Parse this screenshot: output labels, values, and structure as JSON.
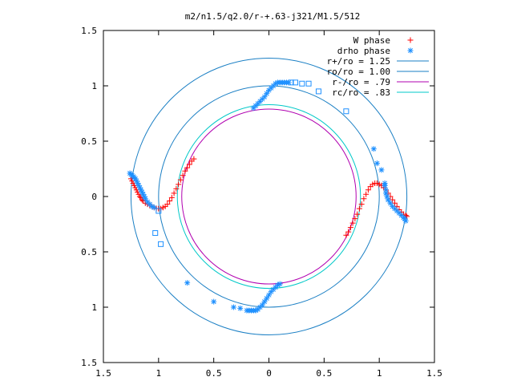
{
  "chart_data": {
    "type": "scatter",
    "title": "m2/n1.5/q2.0/r-+.63-j321/M1.5/512",
    "xlim": [
      -1.5,
      1.5
    ],
    "ylim": [
      -1.5,
      1.5
    ],
    "x_ticks": [
      -1.5,
      -1,
      -0.5,
      0,
      0.5,
      1,
      1.5
    ],
    "x_tick_labels": [
      "1.5",
      "1",
      "0.5",
      "0",
      "0.5",
      "1",
      "1.5"
    ],
    "y_ticks": [
      1.5,
      1,
      0.5,
      0,
      -0.5,
      -1,
      -1.5
    ],
    "y_tick_labels": [
      "1.5",
      "1",
      "0.5",
      "0",
      "0.5",
      "1",
      "1.5"
    ],
    "grid": false,
    "legend_position": "top-right",
    "legend": [
      {
        "label": "W phase",
        "marker": "plus",
        "color": "#ff0000"
      },
      {
        "label": "drho phase",
        "marker": "asterisk",
        "color": "#1e90ff"
      },
      {
        "label": "r+/ro = 1.25",
        "marker": "line",
        "color": "#1a7fc4"
      },
      {
        "label": "ro/ro = 1.00",
        "marker": "line",
        "color": "#1a7fc4"
      },
      {
        "label": "r-/ro =  .79",
        "marker": "line",
        "color": "#b000b0"
      },
      {
        "label": "rc/ro =  .83",
        "marker": "line",
        "color": "#00c8c8"
      }
    ],
    "circles": [
      {
        "r": 1.25,
        "color": "#1a7fc4"
      },
      {
        "r": 1.0,
        "color": "#1a7fc4"
      },
      {
        "r": 0.79,
        "color": "#b000b0"
      },
      {
        "r": 0.83,
        "color": "#00c8c8"
      }
    ],
    "series": [
      {
        "name": "W phase",
        "marker": "plus",
        "color": "#ff0000",
        "points": [
          [
            -1.25,
            0.16
          ],
          [
            -1.24,
            0.14
          ],
          [
            -1.23,
            0.12
          ],
          [
            -1.22,
            0.1
          ],
          [
            -1.21,
            0.08
          ],
          [
            -1.2,
            0.06
          ],
          [
            -1.19,
            0.04
          ],
          [
            -1.18,
            0.02
          ],
          [
            -1.17,
            0.0
          ],
          [
            -1.16,
            -0.01
          ],
          [
            -1.15,
            -0.03
          ],
          [
            -1.14,
            -0.04
          ],
          [
            -1.12,
            -0.06
          ],
          [
            -1.1,
            -0.07
          ],
          [
            -1.08,
            -0.08
          ],
          [
            -1.06,
            -0.09
          ],
          [
            -1.04,
            -0.1
          ],
          [
            -1.02,
            -0.11
          ],
          [
            -1.0,
            -0.11
          ],
          [
            -0.98,
            -0.11
          ],
          [
            -0.96,
            -0.1
          ],
          [
            -0.94,
            -0.09
          ],
          [
            -0.92,
            -0.07
          ],
          [
            -0.9,
            -0.04
          ],
          [
            -0.88,
            -0.01
          ],
          [
            -0.86,
            0.03
          ],
          [
            -0.84,
            0.07
          ],
          [
            -0.82,
            0.11
          ],
          [
            -0.8,
            0.15
          ],
          [
            -0.78,
            0.19
          ],
          [
            -0.76,
            0.23
          ],
          [
            -0.74,
            0.26
          ],
          [
            -0.72,
            0.29
          ],
          [
            -0.7,
            0.32
          ],
          [
            -0.68,
            0.34
          ],
          [
            0.7,
            -0.35
          ],
          [
            0.72,
            -0.32
          ],
          [
            0.74,
            -0.28
          ],
          [
            0.76,
            -0.24
          ],
          [
            0.78,
            -0.2
          ],
          [
            0.8,
            -0.16
          ],
          [
            0.82,
            -0.11
          ],
          [
            0.84,
            -0.07
          ],
          [
            0.86,
            -0.02
          ],
          [
            0.88,
            0.02
          ],
          [
            0.9,
            0.06
          ],
          [
            0.92,
            0.09
          ],
          [
            0.94,
            0.11
          ],
          [
            0.96,
            0.12
          ],
          [
            0.98,
            0.12
          ],
          [
            1.0,
            0.11
          ],
          [
            1.02,
            0.1
          ],
          [
            1.04,
            0.08
          ],
          [
            1.06,
            0.06
          ],
          [
            1.08,
            0.03
          ],
          [
            1.1,
            0.0
          ],
          [
            1.12,
            -0.03
          ],
          [
            1.14,
            -0.06
          ],
          [
            1.16,
            -0.09
          ],
          [
            1.18,
            -0.12
          ],
          [
            1.2,
            -0.14
          ],
          [
            1.22,
            -0.16
          ],
          [
            1.24,
            -0.17
          ],
          [
            1.25,
            -0.18
          ]
        ]
      },
      {
        "name": "drho phase",
        "marker": "asterisk",
        "color": "#1e90ff",
        "points": [
          [
            -1.26,
            0.21
          ],
          [
            -1.25,
            0.2
          ],
          [
            -1.24,
            0.19
          ],
          [
            -1.23,
            0.18
          ],
          [
            -1.22,
            0.17
          ],
          [
            -1.21,
            0.16
          ],
          [
            -1.2,
            0.14
          ],
          [
            -1.19,
            0.12
          ],
          [
            -1.18,
            0.1
          ],
          [
            -1.17,
            0.08
          ],
          [
            -1.16,
            0.06
          ],
          [
            -1.15,
            0.04
          ],
          [
            -1.14,
            0.02
          ],
          [
            -1.13,
            0.0
          ],
          [
            -1.12,
            -0.02
          ],
          [
            -1.1,
            -0.05
          ],
          [
            -1.08,
            -0.07
          ],
          [
            -1.06,
            -0.09
          ],
          [
            -1.04,
            -0.1
          ],
          [
            1.24,
            -0.22
          ],
          [
            1.23,
            -0.2
          ],
          [
            1.22,
            -0.19
          ],
          [
            1.2,
            -0.17
          ],
          [
            1.18,
            -0.15
          ],
          [
            1.16,
            -0.13
          ],
          [
            1.14,
            -0.11
          ],
          [
            1.12,
            -0.09
          ],
          [
            1.1,
            -0.06
          ],
          [
            1.08,
            -0.03
          ],
          [
            1.07,
            0.0
          ],
          [
            1.06,
            0.03
          ],
          [
            1.06,
            0.06
          ],
          [
            1.05,
            0.1
          ],
          [
            1.05,
            0.12
          ],
          [
            1.02,
            0.24
          ],
          [
            0.98,
            0.3
          ],
          [
            0.95,
            0.43
          ],
          [
            1.05,
            0.1
          ],
          [
            -0.14,
            0.8
          ],
          [
            -0.12,
            0.82
          ],
          [
            -0.1,
            0.84
          ],
          [
            -0.08,
            0.86
          ],
          [
            -0.06,
            0.88
          ],
          [
            -0.04,
            0.9
          ],
          [
            -0.02,
            0.93
          ],
          [
            0.0,
            0.96
          ],
          [
            0.02,
            0.98
          ],
          [
            0.04,
            1.0
          ],
          [
            0.06,
            1.02
          ],
          [
            0.08,
            1.03
          ],
          [
            0.1,
            1.03
          ],
          [
            0.12,
            1.03
          ],
          [
            0.14,
            1.03
          ],
          [
            0.16,
            1.03
          ],
          [
            0.18,
            1.03
          ],
          [
            0.1,
            -0.79
          ],
          [
            0.08,
            -0.8
          ],
          [
            0.06,
            -0.82
          ],
          [
            0.04,
            -0.84
          ],
          [
            0.02,
            -0.86
          ],
          [
            0.0,
            -0.89
          ],
          [
            -0.02,
            -0.92
          ],
          [
            -0.04,
            -0.95
          ],
          [
            -0.06,
            -0.98
          ],
          [
            -0.08,
            -1.0
          ],
          [
            -0.1,
            -1.02
          ],
          [
            -0.12,
            -1.03
          ],
          [
            -0.14,
            -1.03
          ],
          [
            -0.16,
            -1.03
          ],
          [
            -0.18,
            -1.03
          ],
          [
            -0.2,
            -1.03
          ],
          [
            -0.26,
            -1.01
          ],
          [
            -0.32,
            -1.0
          ],
          [
            -0.5,
            -0.95
          ],
          [
            -0.74,
            -0.78
          ]
        ]
      },
      {
        "name": "open squares",
        "marker": "square",
        "color": "#1e90ff",
        "points": [
          [
            -1.0,
            -0.13
          ],
          [
            -1.03,
            -0.33
          ],
          [
            -0.98,
            -0.43
          ],
          [
            0.2,
            1.03
          ],
          [
            0.24,
            1.03
          ],
          [
            0.3,
            1.02
          ],
          [
            0.36,
            1.02
          ],
          [
            0.45,
            0.95
          ],
          [
            0.7,
            0.77
          ]
        ]
      }
    ]
  }
}
